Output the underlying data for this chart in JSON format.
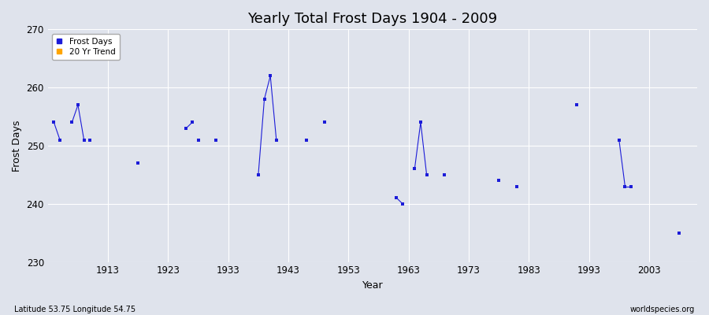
{
  "title": "Yearly Total Frost Days 1904 - 2009",
  "xlabel": "Year",
  "ylabel": "Frost Days",
  "xlim": [
    1903,
    2011
  ],
  "ylim": [
    230,
    270
  ],
  "yticks": [
    230,
    240,
    250,
    260,
    270
  ],
  "xticks": [
    1913,
    1923,
    1933,
    1943,
    1953,
    1963,
    1973,
    1983,
    1993,
    2003
  ],
  "background_color": "#dfe3ec",
  "fig_color": "#dfe3ec",
  "grid_color": "#ffffff",
  "data_color": "#1c1cd8",
  "trend_color": "#ffa500",
  "subtitle_left": "Latitude 53.75 Longitude 54.75",
  "subtitle_right": "worldspecies.org",
  "segments": [
    {
      "x": [
        1904,
        1905
      ],
      "y": [
        254,
        251
      ]
    },
    {
      "x": [
        1907,
        1908
      ],
      "y": [
        254,
        257
      ]
    },
    {
      "x": [
        1908,
        1909
      ],
      "y": [
        257,
        251
      ]
    },
    {
      "x": [
        1926,
        1927
      ],
      "y": [
        253,
        254
      ]
    },
    {
      "x": [
        1938,
        1939
      ],
      "y": [
        245,
        258
      ]
    },
    {
      "x": [
        1939,
        1940
      ],
      "y": [
        258,
        262
      ]
    },
    {
      "x": [
        1940,
        1941
      ],
      "y": [
        262,
        251
      ]
    },
    {
      "x": [
        1961,
        1962
      ],
      "y": [
        241,
        240
      ]
    },
    {
      "x": [
        1964,
        1965
      ],
      "y": [
        246,
        254
      ]
    },
    {
      "x": [
        1965,
        1966
      ],
      "y": [
        254,
        245
      ]
    },
    {
      "x": [
        1998,
        1999
      ],
      "y": [
        251,
        243
      ]
    },
    {
      "x": [
        1999,
        2000
      ],
      "y": [
        243,
        243
      ]
    }
  ],
  "isolated_points": {
    "years": [
      1904,
      1907,
      1910,
      1918,
      1926,
      1928,
      1931,
      1938,
      1946,
      1949,
      1961,
      1964,
      1969,
      1978,
      1981,
      1991,
      1998,
      2008
    ],
    "values": [
      254,
      254,
      251,
      247,
      253,
      251,
      251,
      245,
      251,
      254,
      241,
      246,
      245,
      244,
      243,
      257,
      251,
      235
    ]
  },
  "all_points": {
    "years": [
      1904,
      1905,
      1907,
      1908,
      1909,
      1910,
      1918,
      1926,
      1927,
      1928,
      1931,
      1938,
      1939,
      1940,
      1941,
      1946,
      1949,
      1961,
      1962,
      1964,
      1965,
      1966,
      1969,
      1978,
      1981,
      1991,
      1998,
      1999,
      2000,
      2008
    ],
    "values": [
      254,
      251,
      254,
      257,
      251,
      251,
      247,
      253,
      254,
      251,
      251,
      245,
      258,
      262,
      251,
      251,
      254,
      241,
      240,
      246,
      254,
      245,
      245,
      244,
      243,
      257,
      251,
      243,
      243,
      235
    ]
  }
}
